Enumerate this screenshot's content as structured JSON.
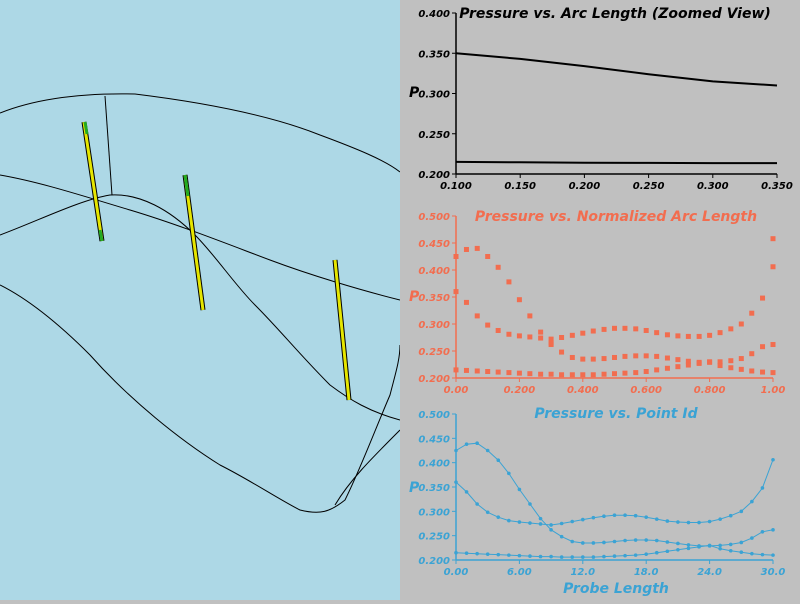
{
  "colors": {
    "viewport_bg": "#add8e6",
    "panel_bg": "#c0c0c0",
    "chart1": "#000000",
    "chart2": "#f26d4f",
    "chart3": "#3ba3d4",
    "probe_outline": "#000000",
    "probe_fill": "#e6e600",
    "probe_tip": "#22aa22"
  },
  "chart_data": [
    {
      "type": "line",
      "title": "Pressure vs. Arc Length (Zoomed View)",
      "xlabel": "",
      "ylabel": "P",
      "xlim": [
        0.1,
        0.35
      ],
      "ylim": [
        0.2,
        0.4
      ],
      "xticks": [
        "0.100",
        "0.150",
        "0.200",
        "0.250",
        "0.300",
        "0.350"
      ],
      "yticks": [
        "0.200",
        "0.250",
        "0.300",
        "0.350",
        "0.400"
      ],
      "series": [
        {
          "x": [
            0.1,
            0.15,
            0.2,
            0.25,
            0.3,
            0.35
          ],
          "y": [
            0.35,
            0.343,
            0.334,
            0.324,
            0.315,
            0.31
          ]
        },
        {
          "x": [
            0.1,
            0.15,
            0.2,
            0.25,
            0.3,
            0.35
          ],
          "y": [
            0.215,
            0.2145,
            0.214,
            0.2138,
            0.2136,
            0.2135
          ]
        }
      ]
    },
    {
      "type": "scatter",
      "title": "Pressure vs. Normalized Arc Length",
      "xlabel": "",
      "ylabel": "P",
      "xlim": [
        0,
        1
      ],
      "ylim": [
        0.2,
        0.5
      ],
      "xticks": [
        "0.00",
        "0.200",
        "0.400",
        "0.600",
        "0.800",
        "1.00"
      ],
      "yticks": [
        "0.200",
        "0.250",
        "0.300",
        "0.350",
        "0.400",
        "0.450",
        "0.500"
      ],
      "series": [
        {
          "x": [
            0,
            0.033,
            0.067,
            0.1,
            0.133,
            0.167,
            0.2,
            0.233,
            0.267,
            0.3,
            0.333,
            0.367,
            0.4,
            0.433,
            0.467,
            0.5,
            0.533,
            0.567,
            0.6,
            0.633,
            0.667,
            0.7,
            0.733,
            0.767,
            0.8,
            0.833,
            0.867,
            0.9,
            0.933,
            0.967,
            1.0
          ],
          "y": [
            0.425,
            0.438,
            0.44,
            0.425,
            0.405,
            0.378,
            0.345,
            0.315,
            0.285,
            0.262,
            0.248,
            0.238,
            0.235,
            0.235,
            0.236,
            0.238,
            0.24,
            0.241,
            0.241,
            0.24,
            0.237,
            0.234,
            0.231,
            0.229,
            0.229,
            0.23,
            0.232,
            0.236,
            0.245,
            0.258,
            0.262
          ]
        },
        {
          "x": [
            0,
            0.033,
            0.067,
            0.1,
            0.133,
            0.167,
            0.2,
            0.233,
            0.267,
            0.3,
            0.333,
            0.367,
            0.4,
            0.433,
            0.467,
            0.5,
            0.533,
            0.567,
            0.6,
            0.633,
            0.667,
            0.7,
            0.733,
            0.767,
            0.8,
            0.833,
            0.867,
            0.9,
            0.933,
            0.967,
            1.0
          ],
          "y": [
            0.36,
            0.34,
            0.315,
            0.298,
            0.288,
            0.281,
            0.278,
            0.276,
            0.274,
            0.272,
            0.275,
            0.279,
            0.283,
            0.287,
            0.29,
            0.292,
            0.292,
            0.291,
            0.288,
            0.284,
            0.28,
            0.278,
            0.277,
            0.277,
            0.279,
            0.284,
            0.291,
            0.3,
            0.32,
            0.348,
            0.406
          ]
        },
        {
          "x": [
            0,
            0.033,
            0.067,
            0.1,
            0.133,
            0.167,
            0.2,
            0.233,
            0.267,
            0.3,
            0.333,
            0.367,
            0.4,
            0.433,
            0.467,
            0.5,
            0.533,
            0.567,
            0.6,
            0.633,
            0.667,
            0.7,
            0.733,
            0.767,
            0.8,
            0.833,
            0.867,
            0.9,
            0.933,
            0.967,
            1.0
          ],
          "y": [
            0.215,
            0.214,
            0.213,
            0.212,
            0.211,
            0.21,
            0.209,
            0.208,
            0.207,
            0.207,
            0.206,
            0.206,
            0.206,
            0.206,
            0.207,
            0.208,
            0.209,
            0.21,
            0.212,
            0.215,
            0.218,
            0.221,
            0.224,
            0.227,
            0.23,
            0.223,
            0.219,
            0.216,
            0.213,
            0.211,
            0.21
          ]
        },
        {
          "x": [
            0.3,
            1.0
          ],
          "y": [
            0.265,
            0.458
          ]
        }
      ]
    },
    {
      "type": "line",
      "title": "Pressure vs. Point Id",
      "xlabel": "Probe Length",
      "ylabel": "P",
      "xlim": [
        0,
        30
      ],
      "ylim": [
        0.2,
        0.5
      ],
      "xticks": [
        "0.00",
        "6.00",
        "12.0",
        "18.0",
        "24.0",
        "30.0"
      ],
      "yticks": [
        "0.200",
        "0.250",
        "0.300",
        "0.350",
        "0.400",
        "0.450",
        "0.500"
      ],
      "series": [
        {
          "x": [
            0,
            1,
            2,
            3,
            4,
            5,
            6,
            7,
            8,
            9,
            10,
            11,
            12,
            13,
            14,
            15,
            16,
            17,
            18,
            19,
            20,
            21,
            22,
            23,
            24,
            25,
            26,
            27,
            28,
            29,
            30
          ],
          "y": [
            0.425,
            0.438,
            0.44,
            0.425,
            0.405,
            0.378,
            0.345,
            0.315,
            0.285,
            0.262,
            0.248,
            0.238,
            0.235,
            0.235,
            0.236,
            0.238,
            0.24,
            0.241,
            0.241,
            0.24,
            0.237,
            0.234,
            0.231,
            0.229,
            0.229,
            0.23,
            0.232,
            0.236,
            0.245,
            0.258,
            0.262
          ]
        },
        {
          "x": [
            0,
            1,
            2,
            3,
            4,
            5,
            6,
            7,
            8,
            9,
            10,
            11,
            12,
            13,
            14,
            15,
            16,
            17,
            18,
            19,
            20,
            21,
            22,
            23,
            24,
            25,
            26,
            27,
            28,
            29,
            30
          ],
          "y": [
            0.36,
            0.34,
            0.315,
            0.298,
            0.288,
            0.281,
            0.278,
            0.276,
            0.274,
            0.272,
            0.275,
            0.279,
            0.283,
            0.287,
            0.29,
            0.292,
            0.292,
            0.291,
            0.288,
            0.284,
            0.28,
            0.278,
            0.277,
            0.277,
            0.279,
            0.284,
            0.291,
            0.3,
            0.32,
            0.348,
            0.406
          ]
        },
        {
          "x": [
            0,
            1,
            2,
            3,
            4,
            5,
            6,
            7,
            8,
            9,
            10,
            11,
            12,
            13,
            14,
            15,
            16,
            17,
            18,
            19,
            20,
            21,
            22,
            23,
            24,
            25,
            26,
            27,
            28,
            29,
            30
          ],
          "y": [
            0.215,
            0.214,
            0.213,
            0.212,
            0.211,
            0.21,
            0.209,
            0.208,
            0.207,
            0.207,
            0.206,
            0.206,
            0.206,
            0.206,
            0.207,
            0.208,
            0.209,
            0.21,
            0.212,
            0.215,
            0.218,
            0.221,
            0.224,
            0.227,
            0.23,
            0.223,
            0.219,
            0.216,
            0.213,
            0.211,
            0.21
          ]
        }
      ]
    }
  ]
}
